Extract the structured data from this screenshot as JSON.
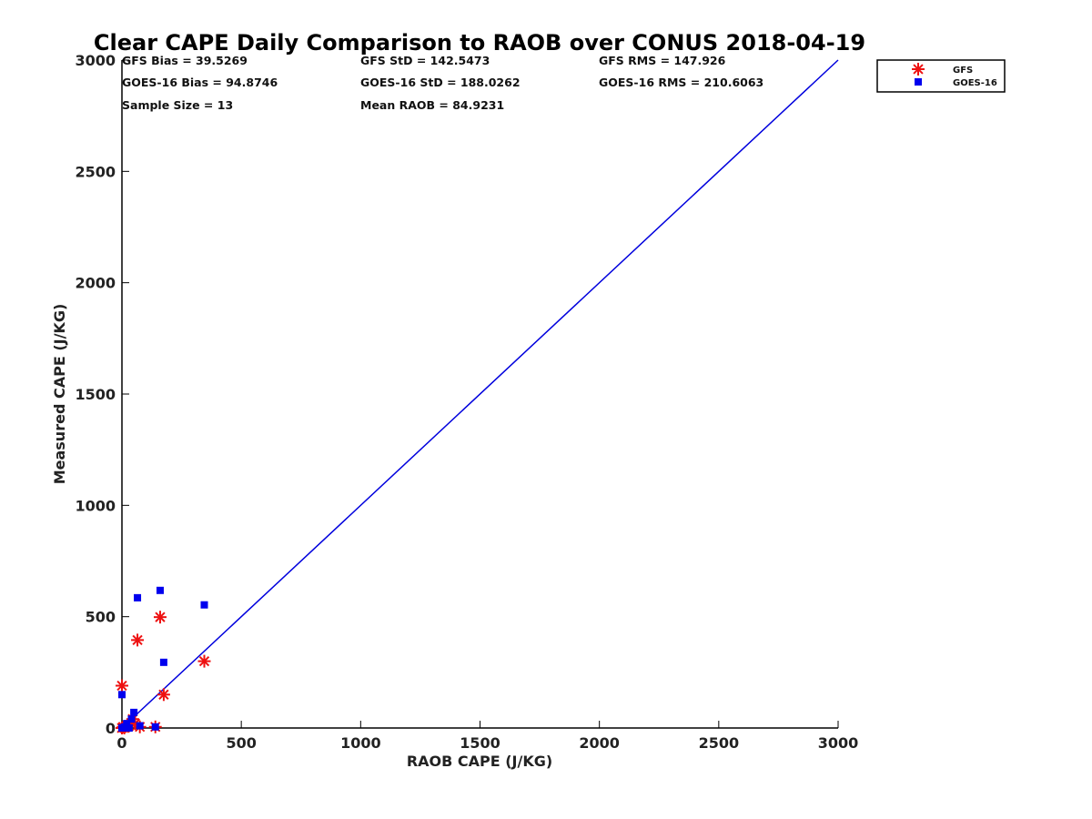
{
  "chart_data": {
    "type": "scatter",
    "title": "Clear CAPE Daily Comparison to RAOB over CONUS 2018-04-19",
    "xlabel": "RAOB CAPE (J/KG)",
    "ylabel": "Measured CAPE (J/KG)",
    "xlim": [
      0,
      3000
    ],
    "ylim": [
      0,
      3000
    ],
    "xticks": [
      0,
      500,
      1000,
      1500,
      2000,
      2500,
      3000
    ],
    "yticks": [
      0,
      500,
      1000,
      1500,
      2000,
      2500,
      3000
    ],
    "grid": false,
    "legend_position": "top-right",
    "stats": {
      "gfs_bias": "GFS Bias = 39.5269",
      "gfs_std": "GFS StD = 142.5473",
      "gfs_rms": "GFS RMS = 147.926",
      "goes_bias": "GOES-16 Bias = 94.8746",
      "goes_std": "GOES-16 StD = 188.0262",
      "goes_rms": "GOES-16 RMS = 210.6063",
      "sample_size": "Sample Size = 13",
      "mean_raob": "Mean RAOB = 84.9231"
    },
    "reference_line": {
      "color": "#0000dd",
      "points": [
        [
          0,
          0
        ],
        [
          3000,
          3000
        ]
      ]
    },
    "series": [
      {
        "name": "GFS",
        "marker": "asterisk",
        "color": "#ee1111",
        "points": [
          [
            0,
            190
          ],
          [
            0,
            0
          ],
          [
            5,
            5
          ],
          [
            10,
            0
          ],
          [
            30,
            10
          ],
          [
            45,
            40
          ],
          [
            55,
            20
          ],
          [
            65,
            395
          ],
          [
            75,
            5
          ],
          [
            140,
            5
          ],
          [
            160,
            498
          ],
          [
            175,
            150
          ],
          [
            345,
            300
          ]
        ]
      },
      {
        "name": "GOES-16",
        "marker": "square",
        "color": "#0000ee",
        "points": [
          [
            0,
            150
          ],
          [
            0,
            0
          ],
          [
            10,
            5
          ],
          [
            20,
            20
          ],
          [
            40,
            40
          ],
          [
            50,
            70
          ],
          [
            65,
            585
          ],
          [
            75,
            10
          ],
          [
            140,
            5
          ],
          [
            160,
            618
          ],
          [
            175,
            295
          ],
          [
            345,
            553
          ],
          [
            30,
            0
          ]
        ]
      }
    ]
  }
}
